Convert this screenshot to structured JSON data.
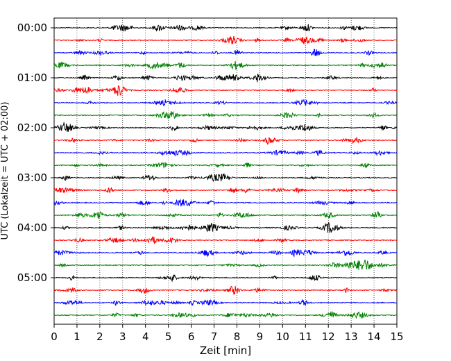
{
  "chart_data": {
    "type": "line",
    "title": "",
    "xlabel": "Zeit  [min]",
    "ylabel": "UTC (Lokalzeit = UTC + 02:00)",
    "xlim": [
      0,
      15
    ],
    "x_ticks": [
      "0",
      "1",
      "2",
      "3",
      "4",
      "5",
      "6",
      "7",
      "8",
      "9",
      "10",
      "11",
      "12",
      "13",
      "14",
      "15"
    ],
    "y_tick_labels": [
      "00:00",
      "01:00",
      "02:00",
      "03:00",
      "04:00",
      "05:00"
    ],
    "grid": "vertical dotted lines at each minute",
    "trace_colors": [
      "#000000",
      "#ff0000",
      "#0000ff",
      "#008000"
    ],
    "trace_count": 24,
    "trace_interval_minutes": 15,
    "description_of_series": "Seismogram helicorder: one trace per 15 minutes, colors cycle black, red, blue, green"
  }
}
